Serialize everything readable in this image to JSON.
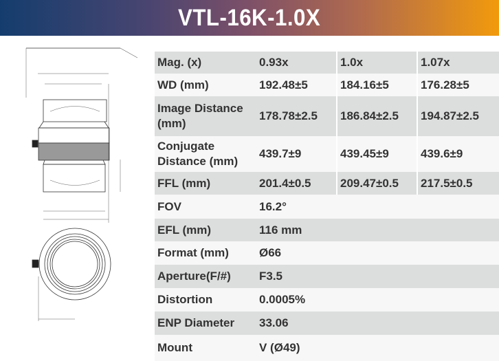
{
  "header": {
    "title": "VTL-16K-1.0X",
    "gradient_start": "#143d6e",
    "gradient_end": "#f29a0c"
  },
  "drawing": {
    "icon": "lens-technical-drawing"
  },
  "specs": {
    "multi": [
      {
        "label": "Mag. (x)",
        "values": [
          "0.93x",
          "1.0x",
          "1.07x"
        ]
      },
      {
        "label": "WD (mm)",
        "values": [
          "192.48±5",
          "184.16±5",
          "176.28±5"
        ]
      },
      {
        "label": "Image Distance (mm)",
        "values": [
          "178.78±2.5",
          "186.84±2.5",
          "194.87±2.5"
        ]
      },
      {
        "label": "Conjugate Distance (mm)",
        "values": [
          "439.7±9",
          "439.45±9",
          "439.6±9"
        ]
      },
      {
        "label": "FFL (mm)",
        "values": [
          "201.4±0.5",
          "209.47±0.5",
          "217.5±0.5"
        ]
      }
    ],
    "single": [
      {
        "label": "FOV",
        "value": "16.2°"
      },
      {
        "label": "EFL (mm)",
        "value": "116 mm"
      },
      {
        "label": "Format (mm)",
        "value": "Ø66"
      },
      {
        "label": "Aperture(F/#)",
        "value": "F3.5"
      },
      {
        "label": "Distortion",
        "value": "0.0005%"
      },
      {
        "label": "ENP Diameter",
        "value": "33.06"
      },
      {
        "label": "Mount",
        "value": "V (Ø49)"
      }
    ]
  }
}
